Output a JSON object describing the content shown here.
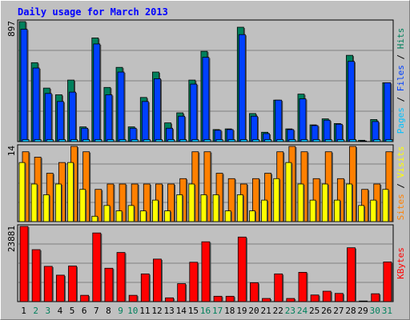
{
  "chart_data": [
    {
      "type": "bar",
      "title": "Daily usage for March 2013",
      "panel": "hits-files-pages",
      "ymax_label": "897",
      "ylim": [
        0,
        897
      ],
      "series_labels": {
        "pages": "Pages",
        "files": "Files",
        "hits": "Hits",
        "sep": " / "
      },
      "x": [
        1,
        2,
        3,
        4,
        5,
        6,
        7,
        8,
        9,
        10,
        11,
        12,
        13,
        14,
        15,
        16,
        17,
        18,
        19,
        20,
        21,
        22,
        23,
        24,
        25,
        26,
        27,
        28,
        29,
        30,
        31
      ],
      "weekend_days": [
        2,
        3,
        9,
        10,
        16,
        17,
        23,
        24,
        30,
        31
      ],
      "series": [
        {
          "name": "Hits",
          "values": [
            897,
            590,
            400,
            350,
            460,
            110,
            775,
            405,
            555,
            110,
            330,
            520,
            140,
            215,
            460,
            675,
            90,
            95,
            855,
            210,
            70,
            310,
            95,
            355,
            125,
            170,
            135,
            645,
            10,
            165,
            440
          ]
        },
        {
          "name": "Files",
          "values": [
            840,
            550,
            360,
            300,
            370,
            100,
            730,
            350,
            520,
            100,
            300,
            470,
            100,
            190,
            430,
            630,
            85,
            90,
            800,
            190,
            60,
            310,
            90,
            320,
            120,
            160,
            130,
            600,
            5,
            150,
            440
          ]
        },
        {
          "name": "Pages",
          "values": [
            15,
            15,
            15,
            15,
            15,
            15,
            15,
            15,
            15,
            15,
            15,
            15,
            15,
            15,
            15,
            15,
            15,
            15,
            15,
            15,
            15,
            15,
            15,
            15,
            15,
            15,
            15,
            15,
            0,
            15,
            15
          ]
        }
      ]
    },
    {
      "type": "bar",
      "panel": "visits-sites",
      "ymax_label": "14",
      "ylim": [
        0,
        14
      ],
      "series_labels": {
        "sites": "Sites",
        "visits": "Visits",
        "sep": " / "
      },
      "series": [
        {
          "name": "Visits",
          "values": [
            13,
            12,
            9,
            11,
            14,
            13,
            6,
            7,
            7,
            7,
            7,
            7,
            7,
            8,
            13,
            13,
            9,
            8,
            7,
            8,
            9,
            13,
            14,
            13,
            8,
            13,
            8,
            14,
            6,
            7,
            13
          ]
        },
        {
          "name": "Sites",
          "values": [
            11,
            7,
            5,
            7,
            11,
            6,
            1,
            3,
            2,
            3,
            2,
            4,
            2,
            5,
            7,
            5,
            5,
            2,
            5,
            2,
            4,
            8,
            11,
            7,
            4,
            7,
            4,
            7,
            3,
            4,
            6
          ]
        }
      ]
    },
    {
      "type": "bar",
      "panel": "kbytes",
      "ymax_label": "23881",
      "ylim": [
        0,
        23881
      ],
      "series_labels": {
        "kbytes": "KBytes"
      },
      "series": [
        {
          "name": "KBytes",
          "values": [
            23881,
            16500,
            11200,
            8400,
            11300,
            2000,
            21800,
            10600,
            15600,
            2000,
            8800,
            13500,
            1200,
            5700,
            12500,
            19000,
            1700,
            1700,
            20500,
            6000,
            1000,
            8800,
            1000,
            9300,
            2100,
            3300,
            2600,
            17100,
            200,
            2500,
            12600
          ]
        }
      ]
    }
  ],
  "colors": {
    "background": "#c0c0c0",
    "frame_light": "#ffffff",
    "frame_dark": "#808080",
    "title": "#0000ff",
    "hits": "#00805c",
    "files": "#0040ff",
    "pages": "#00c0ff",
    "visits": "#ff8000",
    "sites": "#ffff00",
    "kbytes": "#ff0000",
    "weekday_label": "#000000",
    "weekend_label": "#00805c",
    "grid": "#808080",
    "plot_border": "#000000"
  }
}
